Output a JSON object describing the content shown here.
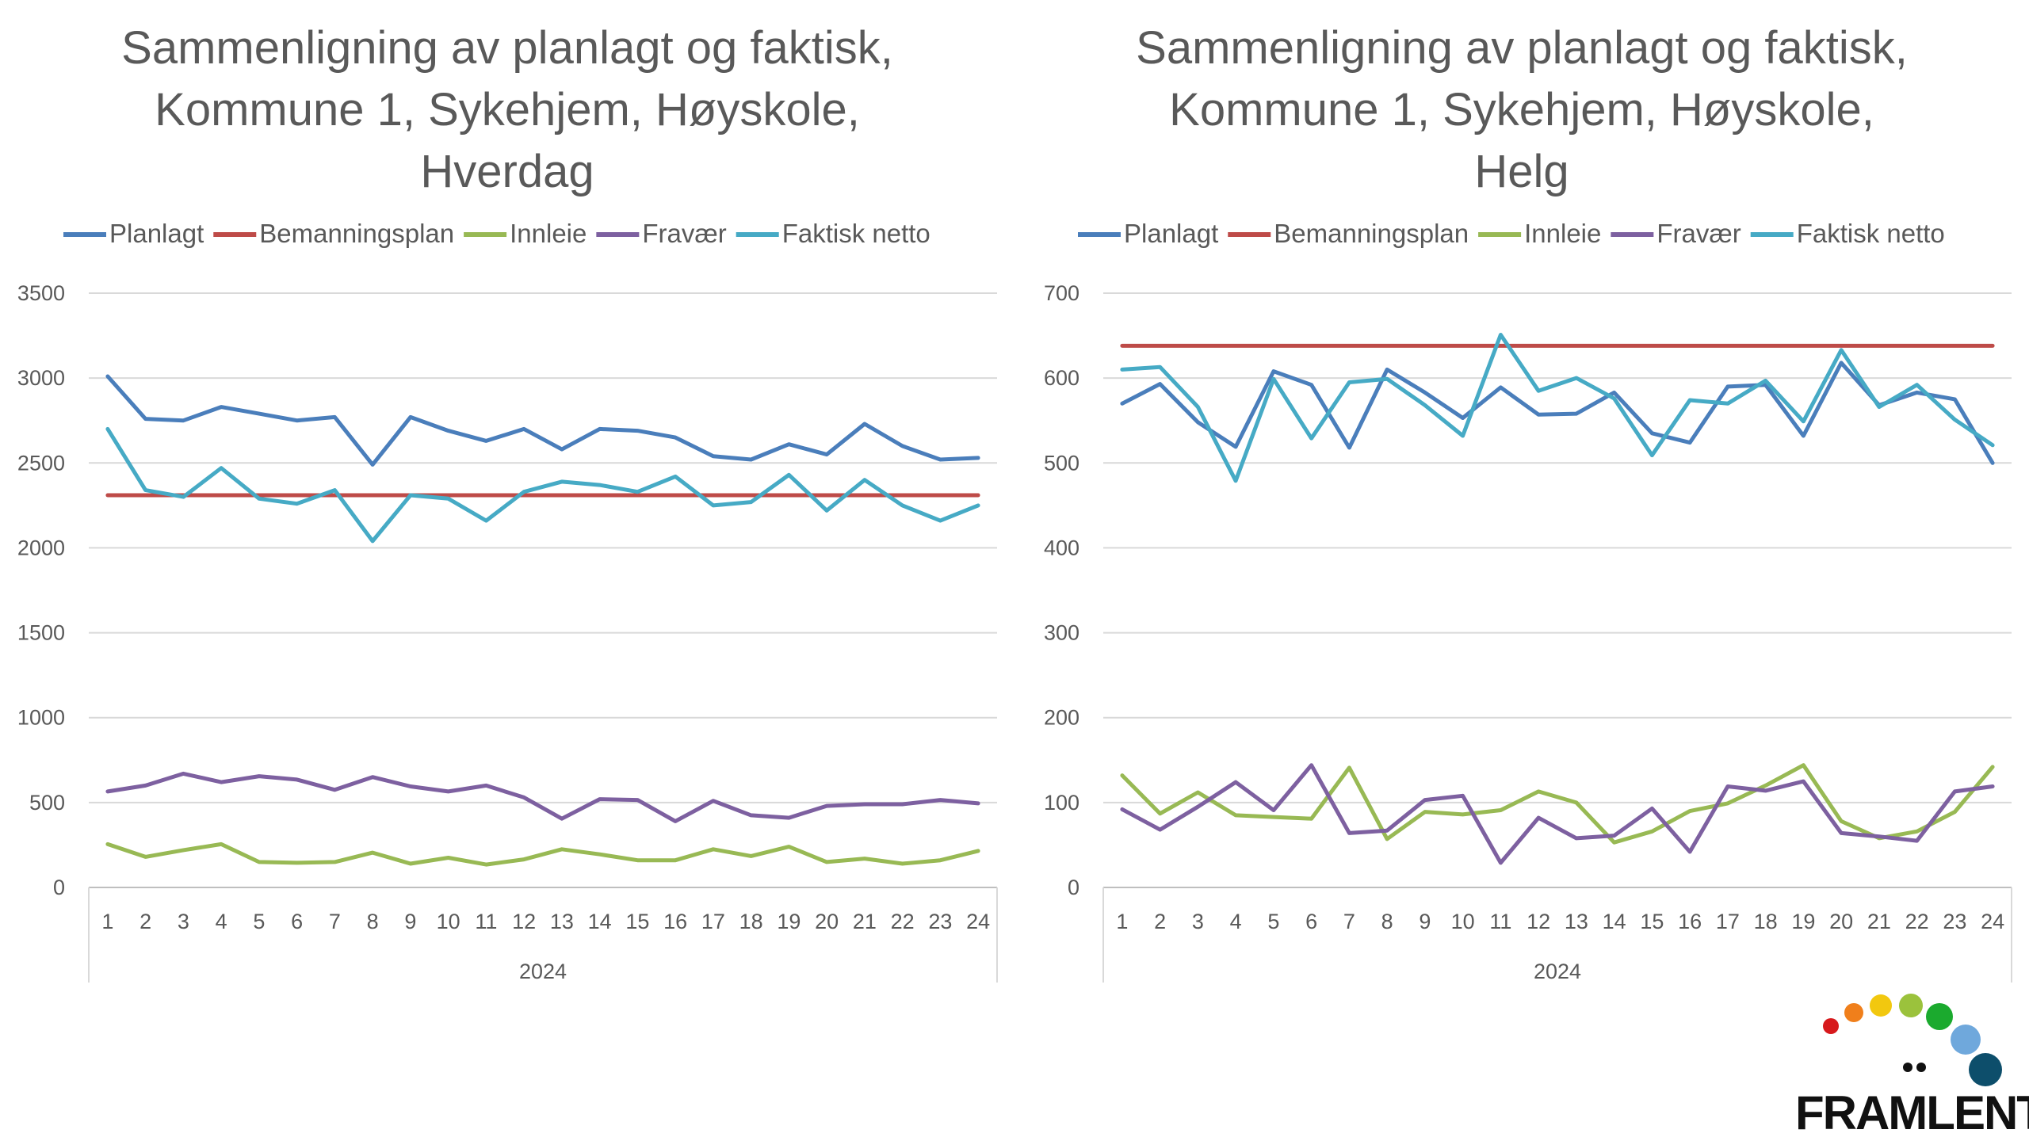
{
  "logo": {
    "text": "FRAMLENT"
  },
  "chart_data": [
    {
      "type": "line",
      "title_lines": [
        "Sammenligning av planlagt og faktisk,",
        "Kommune 1, Sykehjem, Høyskole,",
        "Hverdag"
      ],
      "x": [
        "1",
        "2",
        "3",
        "4",
        "5",
        "6",
        "7",
        "8",
        "9",
        "10",
        "11",
        "12",
        "13",
        "14",
        "15",
        "16",
        "17",
        "18",
        "19",
        "20",
        "21",
        "22",
        "23",
        "24"
      ],
      "group_label": "2024",
      "ylim": [
        0,
        3500
      ],
      "yticks": [
        0,
        500,
        1000,
        1500,
        2000,
        2500,
        3000,
        3500
      ],
      "grid": true,
      "legend_position": "top",
      "series": [
        {
          "name": "Planlagt",
          "color": "#4A7EBB",
          "values": [
            3010,
            2760,
            2750,
            2830,
            2790,
            2750,
            2770,
            2490,
            2770,
            2690,
            2630,
            2700,
            2580,
            2700,
            2690,
            2650,
            2540,
            2520,
            2610,
            2550,
            2730,
            2600,
            2520,
            2530
          ]
        },
        {
          "name": "Bemanningsplan",
          "color": "#BE4B48",
          "values": [
            2310,
            2310,
            2310,
            2310,
            2310,
            2310,
            2310,
            2310,
            2310,
            2310,
            2310,
            2310,
            2310,
            2310,
            2310,
            2310,
            2310,
            2310,
            2310,
            2310,
            2310,
            2310,
            2310,
            2310
          ]
        },
        {
          "name": "Innleie",
          "color": "#98B954",
          "values": [
            255,
            180,
            220,
            255,
            150,
            145,
            150,
            205,
            140,
            175,
            135,
            165,
            225,
            195,
            160,
            160,
            225,
            185,
            240,
            150,
            170,
            140,
            160,
            215
          ]
        },
        {
          "name": "Fravær",
          "color": "#7D60A0",
          "values": [
            565,
            600,
            670,
            620,
            655,
            635,
            575,
            650,
            595,
            565,
            600,
            530,
            405,
            520,
            515,
            390,
            510,
            425,
            410,
            480,
            490,
            490,
            515,
            495
          ]
        },
        {
          "name": "Faktisk netto",
          "color": "#46AAC5",
          "values": [
            2700,
            2340,
            2300,
            2470,
            2290,
            2260,
            2340,
            2040,
            2310,
            2290,
            2160,
            2330,
            2390,
            2370,
            2330,
            2420,
            2250,
            2270,
            2430,
            2220,
            2400,
            2250,
            2160,
            2250
          ]
        }
      ]
    },
    {
      "type": "line",
      "title_lines": [
        "Sammenligning av planlagt og faktisk,",
        "Kommune 1, Sykehjem, Høyskole,",
        "Helg"
      ],
      "x": [
        "1",
        "2",
        "3",
        "4",
        "5",
        "6",
        "7",
        "8",
        "9",
        "10",
        "11",
        "12",
        "13",
        "14",
        "15",
        "16",
        "17",
        "18",
        "19",
        "20",
        "21",
        "22",
        "23",
        "24"
      ],
      "group_label": "2024",
      "ylim": [
        0,
        700
      ],
      "yticks": [
        0,
        100,
        200,
        300,
        400,
        500,
        600,
        700
      ],
      "grid": true,
      "legend_position": "top",
      "series": [
        {
          "name": "Planlagt",
          "color": "#4A7EBB",
          "values": [
            570,
            593,
            548,
            519,
            608,
            592,
            518,
            610,
            583,
            553,
            589,
            557,
            558,
            583,
            535,
            524,
            590,
            592,
            532,
            618,
            568,
            583,
            575,
            500
          ]
        },
        {
          "name": "Bemanningsplan",
          "color": "#BE4B48",
          "values": [
            638,
            638,
            638,
            638,
            638,
            638,
            638,
            638,
            638,
            638,
            638,
            638,
            638,
            638,
            638,
            638,
            638,
            638,
            638,
            638,
            638,
            638,
            638,
            638
          ]
        },
        {
          "name": "Innleie",
          "color": "#98B954",
          "values": [
            132,
            87,
            112,
            85,
            83,
            81,
            141,
            57,
            89,
            86,
            91,
            113,
            100,
            53,
            66,
            90,
            99,
            120,
            144,
            78,
            58,
            66,
            89,
            142
          ]
        },
        {
          "name": "Fravær",
          "color": "#7D60A0",
          "values": [
            92,
            68,
            95,
            124,
            91,
            144,
            64,
            67,
            103,
            108,
            29,
            82,
            58,
            61,
            93,
            42,
            119,
            114,
            125,
            64,
            60,
            55,
            113,
            119
          ]
        },
        {
          "name": "Faktisk netto",
          "color": "#46AAC5",
          "values": [
            610,
            613,
            566,
            479,
            599,
            529,
            595,
            599,
            568,
            532,
            651,
            585,
            600,
            576,
            509,
            574,
            570,
            597,
            549,
            633,
            566,
            592,
            551,
            521
          ]
        }
      ]
    }
  ]
}
